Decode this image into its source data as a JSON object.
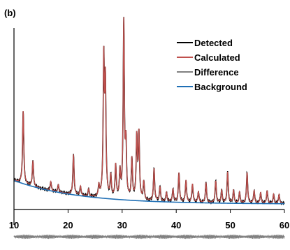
{
  "chart_data": {
    "type": "line",
    "panel_label": "(b)",
    "title": "",
    "xlabel": "",
    "ylabel": "",
    "xlim": [
      10,
      60
    ],
    "ylim": [
      0,
      1
    ],
    "grid": false,
    "legend_position": "top-right",
    "x_ticks": [
      10,
      20,
      30,
      40,
      50,
      60
    ],
    "series": [
      {
        "name": "Detected",
        "color": "#000000"
      },
      {
        "name": "Calculated",
        "color": "#c0504d"
      },
      {
        "name": "Difference",
        "color": "#808080"
      },
      {
        "name": "Background",
        "color": "#1f6fb5"
      }
    ],
    "background": {
      "y0": 0.16,
      "y_end": 0.03,
      "decay": 0.085
    },
    "pattern_peaks": [
      {
        "x": 11.7,
        "h": 0.4
      },
      {
        "x": 13.5,
        "h": 0.14
      },
      {
        "x": 16.8,
        "h": 0.05
      },
      {
        "x": 18.2,
        "h": 0.04
      },
      {
        "x": 21.0,
        "h": 0.22
      },
      {
        "x": 22.3,
        "h": 0.05
      },
      {
        "x": 23.8,
        "h": 0.04
      },
      {
        "x": 25.7,
        "h": 0.06
      },
      {
        "x": 26.6,
        "h": 0.74
      },
      {
        "x": 26.9,
        "h": 0.6
      },
      {
        "x": 27.9,
        "h": 0.12
      },
      {
        "x": 28.8,
        "h": 0.18
      },
      {
        "x": 29.6,
        "h": 0.14
      },
      {
        "x": 30.3,
        "h": 0.97
      },
      {
        "x": 30.7,
        "h": 0.28
      },
      {
        "x": 31.8,
        "h": 0.22
      },
      {
        "x": 32.7,
        "h": 0.34
      },
      {
        "x": 33.1,
        "h": 0.36
      },
      {
        "x": 34.0,
        "h": 0.1
      },
      {
        "x": 35.9,
        "h": 0.18
      },
      {
        "x": 37.0,
        "h": 0.08
      },
      {
        "x": 38.2,
        "h": 0.05
      },
      {
        "x": 39.4,
        "h": 0.07
      },
      {
        "x": 40.5,
        "h": 0.16
      },
      {
        "x": 41.8,
        "h": 0.12
      },
      {
        "x": 43.0,
        "h": 0.1
      },
      {
        "x": 44.1,
        "h": 0.06
      },
      {
        "x": 45.5,
        "h": 0.11
      },
      {
        "x": 47.3,
        "h": 0.12
      },
      {
        "x": 48.4,
        "h": 0.07
      },
      {
        "x": 49.5,
        "h": 0.17
      },
      {
        "x": 50.6,
        "h": 0.07
      },
      {
        "x": 51.7,
        "h": 0.06
      },
      {
        "x": 53.1,
        "h": 0.17
      },
      {
        "x": 54.4,
        "h": 0.07
      },
      {
        "x": 55.6,
        "h": 0.06
      },
      {
        "x": 56.8,
        "h": 0.07
      },
      {
        "x": 58.0,
        "h": 0.05
      },
      {
        "x": 59.0,
        "h": 0.05
      }
    ],
    "peak_width": 0.13,
    "difference": {
      "offset": -0.15,
      "amplitude": 0.012
    }
  }
}
